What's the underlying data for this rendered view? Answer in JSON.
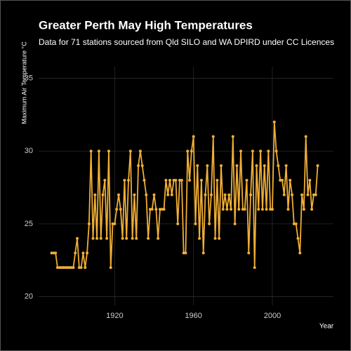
{
  "chart_data": {
    "type": "line",
    "title": "Greater Perth May High Temperatures",
    "subtitle": "Data for 71 stations sourced from Qld SILO and WA DPIRD under CC Licences",
    "y_label": "Maximum Air Temperature °C",
    "x_label": "Year",
    "x": [
      1888,
      1889,
      1890,
      1891,
      1892,
      1893,
      1894,
      1895,
      1896,
      1897,
      1898,
      1899,
      1900,
      1901,
      1902,
      1903,
      1904,
      1905,
      1906,
      1907,
      1908,
      1909,
      1910,
      1911,
      1912,
      1913,
      1914,
      1915,
      1916,
      1917,
      1918,
      1919,
      1920,
      1921,
      1922,
      1923,
      1924,
      1925,
      1926,
      1927,
      1928,
      1929,
      1930,
      1931,
      1932,
      1933,
      1934,
      1935,
      1936,
      1937,
      1938,
      1939,
      1940,
      1941,
      1942,
      1943,
      1944,
      1945,
      1946,
      1947,
      1948,
      1949,
      1950,
      1951,
      1952,
      1953,
      1954,
      1955,
      1956,
      1957,
      1958,
      1959,
      1960,
      1961,
      1962,
      1963,
      1964,
      1965,
      1966,
      1967,
      1968,
      1969,
      1970,
      1971,
      1972,
      1973,
      1974,
      1975,
      1976,
      1977,
      1978,
      1979,
      1980,
      1981,
      1982,
      1983,
      1984,
      1985,
      1986,
      1987,
      1988,
      1989,
      1990,
      1991,
      1992,
      1993,
      1994,
      1995,
      1996,
      1997,
      1998,
      1999,
      2000,
      2001,
      2002,
      2003,
      2004,
      2005,
      2006,
      2007,
      2008,
      2009,
      2010,
      2011,
      2012,
      2013,
      2014,
      2015,
      2016,
      2017,
      2018,
      2019,
      2020,
      2021,
      2022,
      2023
    ],
    "series": [
      {
        "color": "#f0ae35",
        "values": [
          23,
          23,
          23,
          22,
          22,
          22,
          22,
          22,
          22,
          22,
          22,
          22,
          23,
          24,
          22,
          22,
          23,
          22,
          23,
          25,
          30,
          24,
          27,
          24,
          30,
          24,
          27,
          28,
          24,
          30,
          22,
          25,
          25,
          26,
          27,
          26,
          24,
          28,
          24,
          28,
          30,
          24,
          27,
          24,
          29,
          30,
          29,
          28,
          27,
          24,
          26,
          26,
          27,
          26,
          24,
          26,
          26,
          26,
          28,
          27,
          28,
          27,
          28,
          28,
          25,
          28,
          28,
          23,
          23,
          30,
          28,
          30,
          31,
          25,
          29,
          24,
          28,
          23,
          27,
          29,
          25,
          27,
          31,
          24,
          28,
          24,
          29,
          26,
          27,
          26,
          27,
          26,
          31,
          25,
          29,
          26,
          30,
          26,
          26,
          28,
          23,
          27,
          30,
          22,
          29,
          26,
          30,
          26,
          29,
          26,
          30,
          26,
          26,
          32,
          30,
          29,
          28,
          28,
          27,
          29,
          26,
          28,
          27,
          25,
          25,
          24,
          23,
          27,
          26,
          31,
          27,
          28,
          26,
          27,
          27,
          29
        ]
      }
    ],
    "xlim": [
      1881.4,
      2031
    ],
    "ylim": [
      19.4,
      35.8
    ],
    "xticks": [
      1920,
      1960,
      2000
    ],
    "yticks": [
      20,
      25,
      30,
      35
    ],
    "grid": true
  }
}
